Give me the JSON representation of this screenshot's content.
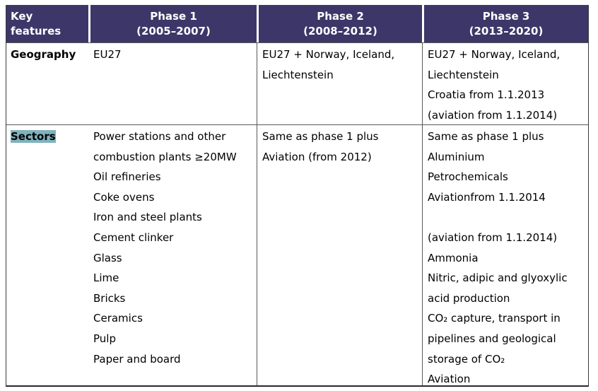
{
  "colors": {
    "header_bg": "#3c3768",
    "header_text": "#ffffff",
    "sectors_highlight": "#7fb2bc",
    "body_text": "#000000"
  },
  "table": {
    "header": {
      "key_features": "Key features",
      "phases": [
        {
          "title": "Phase 1",
          "years": "(2005–2007)"
        },
        {
          "title": "Phase 2",
          "years": "(2008–2012)"
        },
        {
          "title": "Phase 3",
          "years": "(2013–2020)"
        }
      ]
    },
    "rows": [
      {
        "label": "Geography",
        "phase1": [
          "EU27"
        ],
        "phase2": [
          "EU27 + Norway, Iceland, Liechtenstein"
        ],
        "phase3": [
          "EU27 + Norway, Iceland, Liechtenstein",
          "Croatia from 1.1.2013",
          "(aviation from 1.1.2014)"
        ]
      },
      {
        "label": "Sectors",
        "phase1": [
          "Power stations and other combustion plants ≥20MW",
          "Oil refineries",
          "Coke ovens",
          "Iron and steel plants",
          "Cement clinker",
          "Glass",
          "Lime",
          "Bricks",
          "Ceramics",
          "Pulp",
          "Paper and board"
        ],
        "phase2": [
          "Same as phase 1 plus",
          "Aviation (from 2012)"
        ],
        "phase3": [
          "Same as phase 1 plus",
          "Aluminium",
          "Petrochemicals",
          "Aviationfrom 1.1.2014",
          "",
          "(aviation from 1.1.2014)",
          "Ammonia",
          "Nitric, adipic and glyoxylic acid production",
          "CO₂ capture, transport in pipelines and geological storage of CO₂",
          "Aviation"
        ]
      }
    ]
  }
}
